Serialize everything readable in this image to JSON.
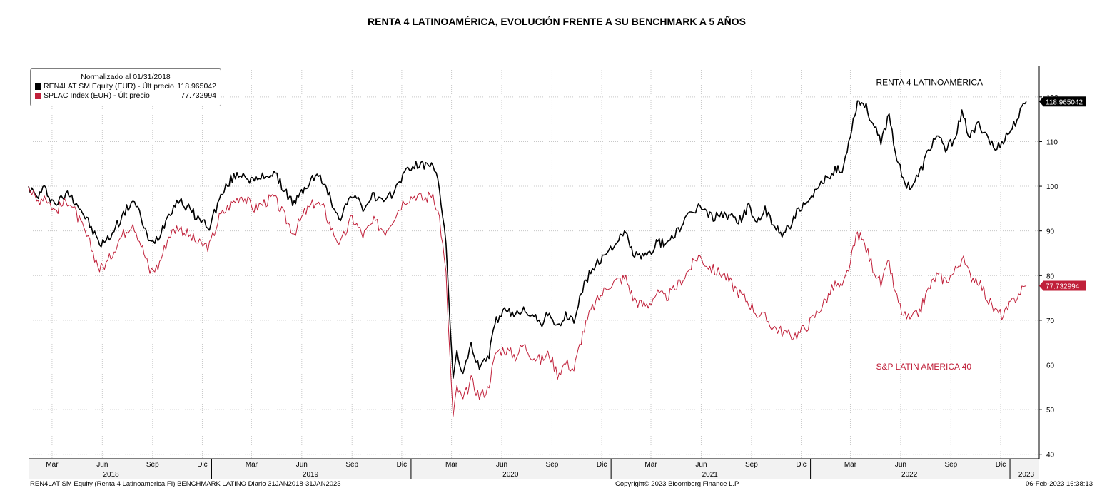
{
  "title": "RENTA 4 LATINOAMÉRICA, EVOLUCIÓN FRENTE A SU BENCHMARK A 5 AÑOS",
  "legend": {
    "header": "Normalizado al 01/31/2018",
    "items": [
      {
        "label": "REN4LAT SM Equity (EUR) - Últ precio",
        "value": "118.965042",
        "color": "#000000"
      },
      {
        "label": "SPLAC Index (EUR) - Últ precio",
        "value": "77.732994",
        "color": "#c0203a"
      }
    ]
  },
  "footer": {
    "left": "REN4LAT SM Equity (Renta 4 Latinoamerica FI) BENCHMARK LATINO  Diario 31JAN2018-31JAN2023",
    "center": "Copyright© 2023 Bloomberg Finance L.P.",
    "right": "06-Feb-2023 16:38:13"
  },
  "chart_data": {
    "type": "line",
    "x_unit": "date",
    "x_range": [
      "2018-01-31",
      "2023-01-31"
    ],
    "ylim": [
      39,
      127
    ],
    "y_ticks": [
      40,
      50,
      60,
      70,
      80,
      90,
      100,
      110,
      120
    ],
    "grid": true,
    "legend_position": "top-left",
    "month_ticks": [
      {
        "label": "Mar",
        "date": "2018-03-15"
      },
      {
        "label": "Jun",
        "date": "2018-06-15"
      },
      {
        "label": "Sep",
        "date": "2018-09-15"
      },
      {
        "label": "Dic",
        "date": "2018-12-15"
      },
      {
        "label": "Mar",
        "date": "2019-03-15"
      },
      {
        "label": "Jun",
        "date": "2019-06-15"
      },
      {
        "label": "Sep",
        "date": "2019-09-15"
      },
      {
        "label": "Dic",
        "date": "2019-12-15"
      },
      {
        "label": "Mar",
        "date": "2020-03-15"
      },
      {
        "label": "Jun",
        "date": "2020-06-15"
      },
      {
        "label": "Sep",
        "date": "2020-09-15"
      },
      {
        "label": "Dic",
        "date": "2020-12-15"
      },
      {
        "label": "Mar",
        "date": "2021-03-15"
      },
      {
        "label": "Jun",
        "date": "2021-06-15"
      },
      {
        "label": "Sep",
        "date": "2021-09-15"
      },
      {
        "label": "Dic",
        "date": "2021-12-15"
      },
      {
        "label": "Mar",
        "date": "2022-03-15"
      },
      {
        "label": "Jun",
        "date": "2022-06-15"
      },
      {
        "label": "Sep",
        "date": "2022-09-15"
      },
      {
        "label": "Dic",
        "date": "2022-12-15"
      }
    ],
    "year_labels": [
      {
        "label": "2018",
        "date": "2018-07-01"
      },
      {
        "label": "2019",
        "date": "2019-07-01"
      },
      {
        "label": "2020",
        "date": "2020-07-01"
      },
      {
        "label": "2021",
        "date": "2021-07-01"
      },
      {
        "label": "2022",
        "date": "2022-07-01"
      },
      {
        "label": "2023",
        "date": "2023-01-31"
      }
    ],
    "annotations": [
      {
        "text": "RENTA 4 LATINOAMÉRICA",
        "date": "2022-05-01",
        "value": 122.6,
        "color": "#000000"
      },
      {
        "text": "S&P LATIN AMERICA 40",
        "date": "2022-05-01",
        "value": 59.0,
        "color": "#c0203a"
      }
    ],
    "series": [
      {
        "name": "REN4LAT SM Equity (EUR)",
        "color": "#000000",
        "last_value": "118.965042",
        "points": [
          [
            "2018-01-31",
            100
          ],
          [
            "2018-02-15",
            97.5
          ],
          [
            "2018-03-01",
            99.5
          ],
          [
            "2018-03-20",
            96
          ],
          [
            "2018-04-15",
            98.5
          ],
          [
            "2018-05-01",
            96
          ],
          [
            "2018-05-20",
            92
          ],
          [
            "2018-06-10",
            87
          ],
          [
            "2018-06-25",
            88
          ],
          [
            "2018-07-15",
            92
          ],
          [
            "2018-08-10",
            97
          ],
          [
            "2018-08-25",
            93
          ],
          [
            "2018-09-10",
            87
          ],
          [
            "2018-09-25",
            88.5
          ],
          [
            "2018-10-15",
            94
          ],
          [
            "2018-11-01",
            97
          ],
          [
            "2018-11-20",
            95
          ],
          [
            "2018-12-10",
            92.5
          ],
          [
            "2018-12-28",
            91
          ],
          [
            "2019-01-15",
            97
          ],
          [
            "2019-02-05",
            101.5
          ],
          [
            "2019-02-25",
            103
          ],
          [
            "2019-03-20",
            101
          ],
          [
            "2019-04-10",
            102.5
          ],
          [
            "2019-04-25",
            103
          ],
          [
            "2019-05-15",
            99
          ],
          [
            "2019-06-01",
            96
          ],
          [
            "2019-06-20",
            99.5
          ],
          [
            "2019-07-10",
            102.5
          ],
          [
            "2019-07-25",
            101
          ],
          [
            "2019-08-10",
            96
          ],
          [
            "2019-08-25",
            93
          ],
          [
            "2019-09-15",
            98.5
          ],
          [
            "2019-10-05",
            95
          ],
          [
            "2019-10-25",
            98
          ],
          [
            "2019-11-15",
            96
          ],
          [
            "2019-12-05",
            100
          ],
          [
            "2019-12-20",
            103
          ],
          [
            "2020-01-10",
            105
          ],
          [
            "2020-01-25",
            104.5
          ],
          [
            "2020-02-10",
            105.5
          ],
          [
            "2020-02-22",
            99
          ],
          [
            "2020-03-05",
            88
          ],
          [
            "2020-03-12",
            70
          ],
          [
            "2020-03-18",
            56
          ],
          [
            "2020-03-25",
            63
          ],
          [
            "2020-04-05",
            58
          ],
          [
            "2020-04-20",
            64
          ],
          [
            "2020-05-05",
            60
          ],
          [
            "2020-05-20",
            61
          ],
          [
            "2020-06-05",
            70
          ],
          [
            "2020-06-20",
            72
          ],
          [
            "2020-07-10",
            71
          ],
          [
            "2020-07-25",
            73
          ],
          [
            "2020-08-10",
            71
          ],
          [
            "2020-08-25",
            69
          ],
          [
            "2020-09-10",
            72
          ],
          [
            "2020-09-25",
            68
          ],
          [
            "2020-10-10",
            71
          ],
          [
            "2020-10-25",
            70
          ],
          [
            "2020-11-10",
            77
          ],
          [
            "2020-11-25",
            81
          ],
          [
            "2020-12-10",
            83
          ],
          [
            "2020-12-28",
            86
          ],
          [
            "2021-01-15",
            88
          ],
          [
            "2021-01-28",
            89.5
          ],
          [
            "2021-02-10",
            85
          ],
          [
            "2021-02-25",
            84
          ],
          [
            "2021-03-10",
            84.5
          ],
          [
            "2021-03-25",
            87.5
          ],
          [
            "2021-04-10",
            87
          ],
          [
            "2021-04-25",
            89
          ],
          [
            "2021-05-10",
            91
          ],
          [
            "2021-05-25",
            93.5
          ],
          [
            "2021-06-10",
            95.5
          ],
          [
            "2021-06-25",
            94
          ],
          [
            "2021-07-10",
            93
          ],
          [
            "2021-07-25",
            94
          ],
          [
            "2021-08-10",
            93
          ],
          [
            "2021-08-25",
            92.5
          ],
          [
            "2021-09-10",
            95.5
          ],
          [
            "2021-09-25",
            92
          ],
          [
            "2021-10-10",
            94.5
          ],
          [
            "2021-10-25",
            91
          ],
          [
            "2021-11-10",
            89.5
          ],
          [
            "2021-11-25",
            91.5
          ],
          [
            "2021-12-10",
            94.5
          ],
          [
            "2021-12-28",
            96
          ],
          [
            "2022-01-15",
            99.5
          ],
          [
            "2022-01-31",
            102
          ],
          [
            "2022-02-15",
            104
          ],
          [
            "2022-02-28",
            103
          ],
          [
            "2022-03-15",
            112
          ],
          [
            "2022-03-28",
            119
          ],
          [
            "2022-04-10",
            118.5
          ],
          [
            "2022-04-25",
            114
          ],
          [
            "2022-05-10",
            109.5
          ],
          [
            "2022-05-25",
            116.5
          ],
          [
            "2022-06-05",
            108
          ],
          [
            "2022-06-20",
            101
          ],
          [
            "2022-07-05",
            100
          ],
          [
            "2022-07-20",
            103
          ],
          [
            "2022-08-05",
            108
          ],
          [
            "2022-08-20",
            111.5
          ],
          [
            "2022-09-05",
            108
          ],
          [
            "2022-09-20",
            110.5
          ],
          [
            "2022-10-05",
            116
          ],
          [
            "2022-10-20",
            111
          ],
          [
            "2022-11-05",
            114
          ],
          [
            "2022-11-20",
            111.5
          ],
          [
            "2022-12-05",
            108
          ],
          [
            "2022-12-20",
            110.5
          ],
          [
            "2023-01-05",
            113
          ],
          [
            "2023-01-20",
            116.5
          ],
          [
            "2023-01-31",
            118.97
          ]
        ]
      },
      {
        "name": "SPLAC Index (EUR)",
        "color": "#c0203a",
        "last_value": "77.732994",
        "points": [
          [
            "2018-01-31",
            100
          ],
          [
            "2018-02-15",
            96.5
          ],
          [
            "2018-03-01",
            98
          ],
          [
            "2018-03-20",
            94.5
          ],
          [
            "2018-04-15",
            97
          ],
          [
            "2018-05-01",
            93
          ],
          [
            "2018-05-20",
            88
          ],
          [
            "2018-06-10",
            81.5
          ],
          [
            "2018-06-25",
            83
          ],
          [
            "2018-07-15",
            88
          ],
          [
            "2018-08-10",
            92
          ],
          [
            "2018-08-25",
            87
          ],
          [
            "2018-09-10",
            81
          ],
          [
            "2018-09-25",
            82
          ],
          [
            "2018-10-15",
            89
          ],
          [
            "2018-11-01",
            91
          ],
          [
            "2018-11-20",
            89
          ],
          [
            "2018-12-10",
            87
          ],
          [
            "2018-12-28",
            86.5
          ],
          [
            "2019-01-15",
            93
          ],
          [
            "2019-02-05",
            96
          ],
          [
            "2019-02-25",
            98
          ],
          [
            "2019-03-20",
            95
          ],
          [
            "2019-04-10",
            96.5
          ],
          [
            "2019-04-25",
            97.5
          ],
          [
            "2019-05-15",
            93
          ],
          [
            "2019-06-01",
            89.5
          ],
          [
            "2019-06-20",
            94
          ],
          [
            "2019-07-10",
            96.5
          ],
          [
            "2019-07-25",
            95
          ],
          [
            "2019-08-10",
            90
          ],
          [
            "2019-08-25",
            87
          ],
          [
            "2019-09-15",
            93
          ],
          [
            "2019-10-05",
            89
          ],
          [
            "2019-10-25",
            92
          ],
          [
            "2019-11-15",
            90
          ],
          [
            "2019-12-05",
            94
          ],
          [
            "2019-12-20",
            97
          ],
          [
            "2020-01-10",
            98
          ],
          [
            "2020-01-25",
            97
          ],
          [
            "2020-02-10",
            98.5
          ],
          [
            "2020-02-22",
            93
          ],
          [
            "2020-03-05",
            80
          ],
          [
            "2020-03-12",
            62
          ],
          [
            "2020-03-18",
            48
          ],
          [
            "2020-03-25",
            55
          ],
          [
            "2020-04-05",
            52
          ],
          [
            "2020-04-20",
            56.5
          ],
          [
            "2020-05-05",
            53
          ],
          [
            "2020-05-20",
            54.5
          ],
          [
            "2020-06-05",
            63
          ],
          [
            "2020-06-20",
            63.5
          ],
          [
            "2020-07-10",
            62
          ],
          [
            "2020-07-25",
            64.5
          ],
          [
            "2020-08-10",
            62
          ],
          [
            "2020-08-25",
            61
          ],
          [
            "2020-09-10",
            62.5
          ],
          [
            "2020-09-25",
            58
          ],
          [
            "2020-10-10",
            60.5
          ],
          [
            "2020-10-25",
            59
          ],
          [
            "2020-11-10",
            67
          ],
          [
            "2020-11-25",
            72
          ],
          [
            "2020-12-10",
            75
          ],
          [
            "2020-12-28",
            78
          ],
          [
            "2021-01-15",
            79
          ],
          [
            "2021-01-28",
            79.5
          ],
          [
            "2021-02-10",
            75
          ],
          [
            "2021-02-25",
            73.5
          ],
          [
            "2021-03-10",
            73.5
          ],
          [
            "2021-03-25",
            76
          ],
          [
            "2021-04-10",
            75
          ],
          [
            "2021-04-25",
            76.5
          ],
          [
            "2021-05-10",
            79
          ],
          [
            "2021-05-25",
            81.5
          ],
          [
            "2021-06-10",
            84.5
          ],
          [
            "2021-06-25",
            82.5
          ],
          [
            "2021-07-10",
            81
          ],
          [
            "2021-07-25",
            80.5
          ],
          [
            "2021-08-10",
            78
          ],
          [
            "2021-08-25",
            76
          ],
          [
            "2021-09-10",
            74
          ],
          [
            "2021-09-25",
            71.5
          ],
          [
            "2021-10-10",
            70.5
          ],
          [
            "2021-10-25",
            68.5
          ],
          [
            "2021-11-10",
            67.5
          ],
          [
            "2021-11-25",
            66.5
          ],
          [
            "2021-12-10",
            67
          ],
          [
            "2021-12-28",
            69
          ],
          [
            "2022-01-15",
            72
          ],
          [
            "2022-01-31",
            75
          ],
          [
            "2022-02-15",
            78
          ],
          [
            "2022-02-28",
            77
          ],
          [
            "2022-03-15",
            83
          ],
          [
            "2022-03-28",
            89.5
          ],
          [
            "2022-04-10",
            87
          ],
          [
            "2022-04-25",
            82
          ],
          [
            "2022-05-10",
            78
          ],
          [
            "2022-05-25",
            83
          ],
          [
            "2022-06-05",
            76
          ],
          [
            "2022-06-20",
            71
          ],
          [
            "2022-07-05",
            70
          ],
          [
            "2022-07-20",
            72
          ],
          [
            "2022-08-05",
            77
          ],
          [
            "2022-08-20",
            80
          ],
          [
            "2022-09-05",
            79
          ],
          [
            "2022-09-20",
            80.5
          ],
          [
            "2022-10-05",
            84
          ],
          [
            "2022-10-20",
            80
          ],
          [
            "2022-11-05",
            79
          ],
          [
            "2022-11-20",
            75
          ],
          [
            "2022-12-05",
            72
          ],
          [
            "2022-12-20",
            71
          ],
          [
            "2023-01-05",
            74
          ],
          [
            "2023-01-20",
            76.5
          ],
          [
            "2023-01-31",
            77.73
          ]
        ]
      }
    ]
  }
}
